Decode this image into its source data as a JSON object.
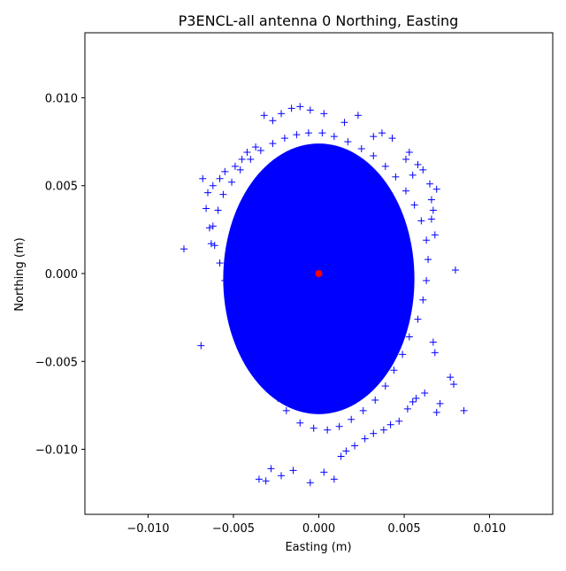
{
  "chart_data": {
    "type": "scatter",
    "title": "P3ENCL-all antenna 0 Northing, Easting",
    "xlabel": "Easting (m)",
    "ylabel": "Northing (m)",
    "xlim": [
      -0.0137,
      0.0137
    ],
    "ylim": [
      -0.0137,
      0.0137
    ],
    "xticks": [
      -0.01,
      -0.005,
      0.0,
      0.005,
      0.01
    ],
    "yticks": [
      -0.01,
      -0.005,
      0.0,
      0.005,
      0.01
    ],
    "tick_labels_x": [
      "−0.010",
      "−0.005",
      "0.000",
      "0.005",
      "0.010"
    ],
    "tick_labels_y": [
      "−0.010",
      "−0.005",
      "0.000",
      "0.005",
      "0.010"
    ],
    "grid": false,
    "series": [
      {
        "marker": "plus",
        "color": "#0000ff",
        "x": [
          0.0085,
          -0.0068,
          -0.0069,
          -0.0079,
          0.008,
          0.0079,
          0.0077,
          0.0071,
          0.0069,
          0.0069,
          0.0066,
          0.0067,
          0.0068,
          0.0068,
          0.0065,
          0.0066,
          0.0067,
          0.0061,
          0.0058,
          0.0055,
          0.0053,
          0.0051,
          0.0043,
          0.0037,
          0.0032,
          0.0023,
          0.0015,
          0.0003,
          -0.0005,
          -0.0011,
          -0.0016,
          -0.0022,
          -0.0027,
          -0.0032,
          -0.0035,
          -0.0031,
          -0.0028,
          -0.0022,
          -0.0015,
          -0.0005,
          0.0003,
          0.0009,
          0.0013,
          0.0016,
          0.0021,
          0.0027,
          0.0032,
          0.0038,
          0.0042,
          0.0047,
          0.0052,
          0.0055,
          0.0057,
          0.0062,
          -0.0037,
          -0.0042,
          -0.0045,
          -0.0049,
          -0.0055,
          -0.0058,
          -0.0062,
          -0.0065,
          -0.0066,
          -0.0064,
          -0.0061,
          -0.0058,
          -0.0055,
          -0.0052,
          -0.0048,
          -0.0044,
          -0.0041,
          -0.0037,
          -0.0033,
          -0.0029,
          -0.0024,
          -0.0019,
          -0.0011,
          -0.0003,
          0.0005,
          0.0012,
          0.0019,
          0.0026,
          0.0033,
          0.0039,
          0.0044,
          0.0049,
          0.0053,
          0.0058,
          0.0061,
          0.0063,
          0.0064,
          0.0063,
          0.006,
          0.0056,
          0.0051,
          0.0045,
          0.0039,
          0.0032,
          0.0025,
          0.0017,
          0.0009,
          0.0002,
          -0.0006,
          -0.0013,
          -0.002,
          -0.0027,
          -0.0034,
          -0.004,
          -0.0046,
          -0.0051,
          -0.0056,
          -0.0059,
          -0.0062,
          -0.0063
        ],
        "y": [
          -0.0078,
          0.0054,
          -0.0041,
          0.0014,
          0.0002,
          -0.0063,
          -0.0059,
          -0.0074,
          -0.0079,
          0.0048,
          0.0042,
          0.0036,
          0.0022,
          -0.0045,
          0.0051,
          0.0031,
          -0.0039,
          0.0059,
          0.0062,
          0.0056,
          0.0069,
          0.0065,
          0.0077,
          0.008,
          0.0078,
          0.009,
          0.0086,
          0.0091,
          0.0093,
          0.0095,
          0.0094,
          0.0091,
          0.0087,
          0.009,
          -0.0117,
          -0.0118,
          -0.0111,
          -0.0115,
          -0.0112,
          -0.0119,
          -0.0113,
          -0.0117,
          -0.0104,
          -0.0101,
          -0.0098,
          -0.0094,
          -0.0091,
          -0.0089,
          -0.0086,
          -0.0084,
          -0.0077,
          -0.0073,
          -0.0071,
          -0.0068,
          0.0072,
          0.0069,
          0.0065,
          0.0061,
          0.0058,
          0.0054,
          0.005,
          0.0046,
          0.0037,
          0.0026,
          0.0016,
          0.0006,
          -0.0004,
          -0.0013,
          -0.0022,
          -0.0031,
          -0.004,
          -0.0048,
          -0.0056,
          -0.0064,
          -0.0071,
          -0.0078,
          -0.0085,
          -0.0088,
          -0.0089,
          -0.0087,
          -0.0083,
          -0.0078,
          -0.0072,
          -0.0064,
          -0.0055,
          -0.0046,
          -0.0036,
          -0.0026,
          -0.0015,
          -0.0004,
          0.0008,
          0.0019,
          0.003,
          0.0039,
          0.0047,
          0.0055,
          0.0061,
          0.0067,
          0.0071,
          0.0075,
          0.0078,
          0.008,
          0.008,
          0.0079,
          0.0077,
          0.0074,
          0.007,
          0.0065,
          0.0059,
          0.0052,
          0.0045,
          0.0036,
          0.0027,
          0.0017
        ]
      }
    ],
    "fill_cloud": {
      "center": [
        0.0,
        -0.0003
      ],
      "semi_axis_x": 0.0056,
      "semi_axis_y": 0.0077,
      "color": "#0000ff"
    },
    "reference_point": {
      "x": 0.0,
      "y": 0.0,
      "color": "#ff0000",
      "marker": "circle"
    }
  }
}
